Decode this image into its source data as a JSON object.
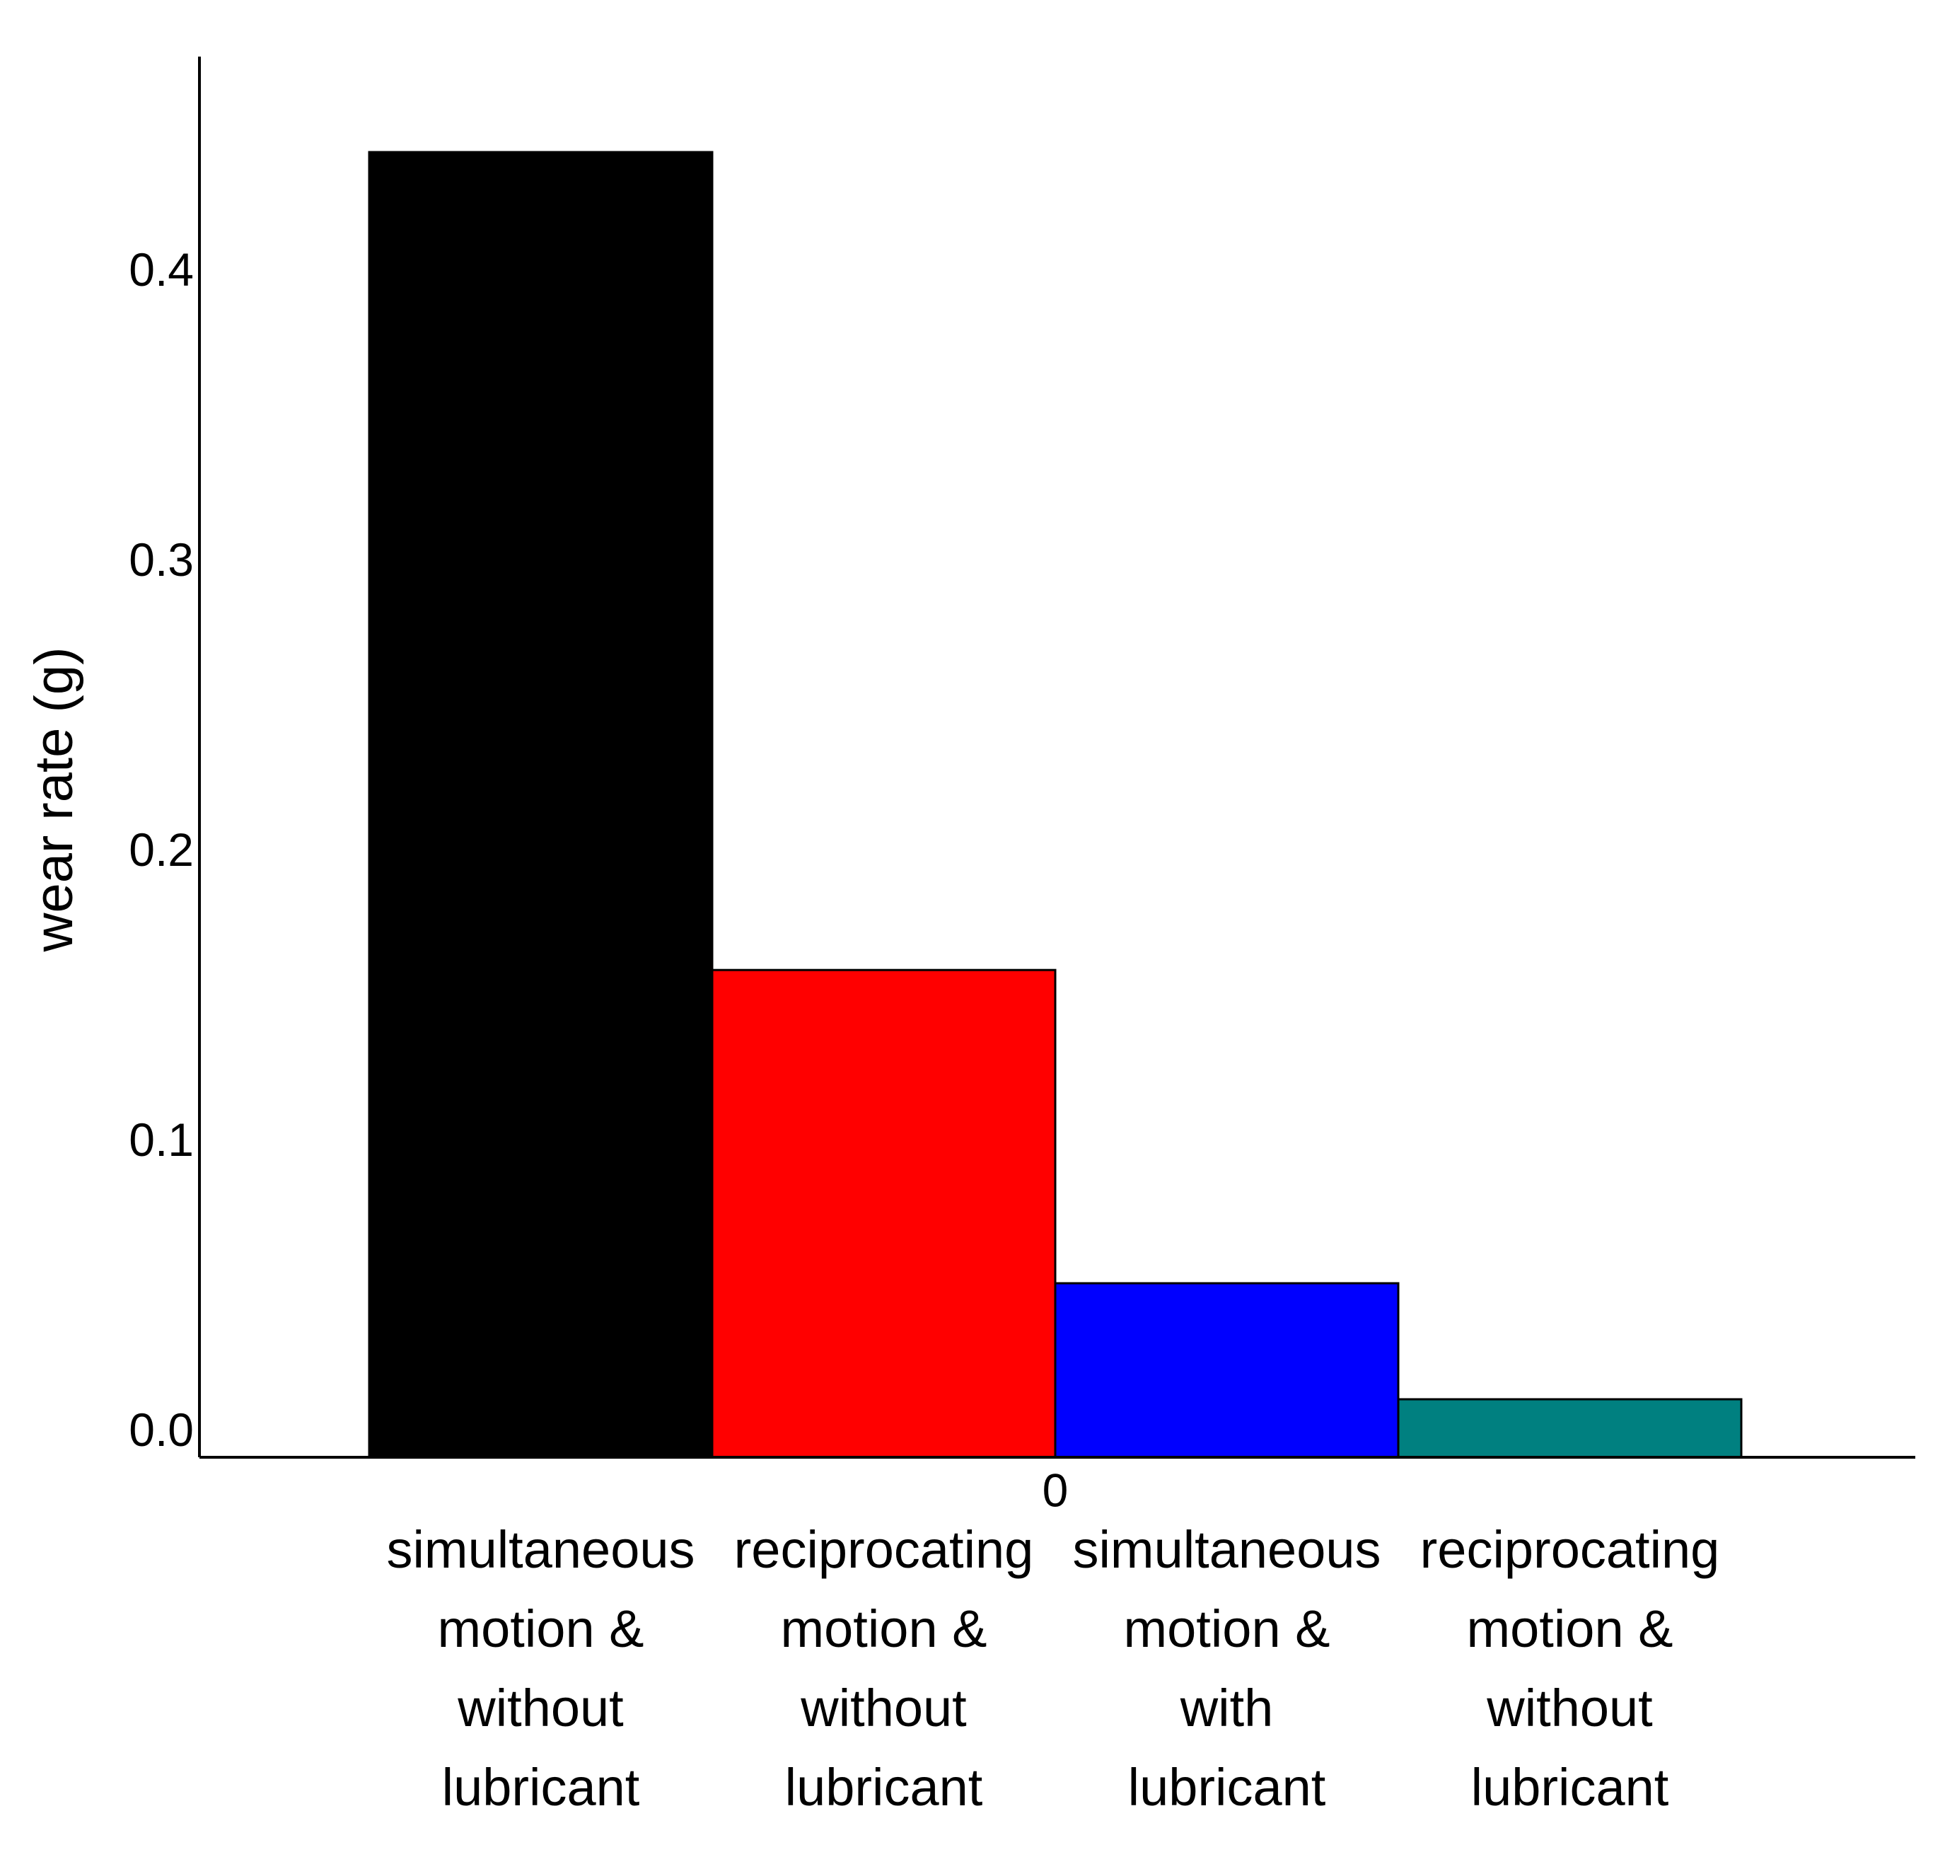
{
  "chart_data": {
    "type": "bar",
    "title": "",
    "xlabel": "",
    "ylabel": "wear rate (g)",
    "x_axis_tick": "0",
    "categories": [
      "simultaneous motion & without lubricant",
      "reciprocating motion & without lubricant",
      "simultaneous motion & with lubricant",
      "reciprocating motion & without lubricant"
    ],
    "category_lines": [
      [
        "simultaneous",
        "motion &",
        "without",
        "lubricant"
      ],
      [
        "reciprocating",
        "motion &",
        "without",
        "lubricant"
      ],
      [
        "simultaneous",
        "motion &",
        "with",
        "lubricant"
      ],
      [
        "reciprocating",
        "motion &",
        "without",
        "lubricant"
      ]
    ],
    "values": [
      0.45,
      0.168,
      0.06,
      0.02
    ],
    "colors": [
      "#000000",
      "#ff0000",
      "#0000ff",
      "#008080"
    ],
    "yticks": [
      0.0,
      0.1,
      0.2,
      0.3,
      0.4
    ],
    "ytick_labels": [
      "0.0",
      "0.1",
      "0.2",
      "0.3",
      "0.4"
    ],
    "ylim": [
      0,
      0.485
    ],
    "grid": false,
    "legend": "none"
  }
}
